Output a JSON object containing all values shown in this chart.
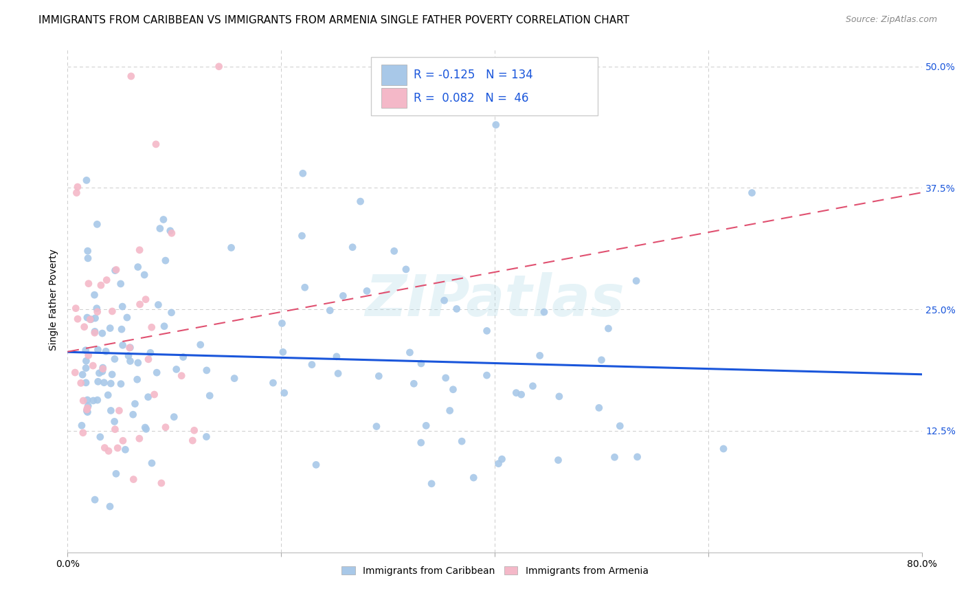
{
  "title": "IMMIGRANTS FROM CARIBBEAN VS IMMIGRANTS FROM ARMENIA SINGLE FATHER POVERTY CORRELATION CHART",
  "source": "Source: ZipAtlas.com",
  "ylabel": "Single Father Poverty",
  "color_caribbean": "#a8c8e8",
  "color_armenia": "#f4b8c8",
  "line_color_caribbean": "#1a56db",
  "line_color_armenia": "#e05070",
  "watermark": "ZIPatlas",
  "background_color": "#ffffff",
  "grid_color": "#cccccc",
  "xlim": [
    0.0,
    0.8
  ],
  "ylim": [
    0.0,
    0.52
  ],
  "yticks": [
    0.0,
    0.125,
    0.25,
    0.375,
    0.5
  ],
  "ytick_labels_right": [
    "",
    "12.5%",
    "25.0%",
    "37.5%",
    "50.0%"
  ],
  "xtick_positions": [
    0.0,
    0.2,
    0.4,
    0.6,
    0.8
  ],
  "xtick_labels": [
    "0.0%",
    "",
    "",
    "",
    "80.0%"
  ],
  "legend_label1": "R = -0.125   N = 134",
  "legend_label2": "R =  0.082   N =  46",
  "bottom_legend1": "Immigrants from Caribbean",
  "bottom_legend2": "Immigrants from Armenia",
  "title_fontsize": 11,
  "tick_fontsize": 10,
  "axis_label_fontsize": 10
}
